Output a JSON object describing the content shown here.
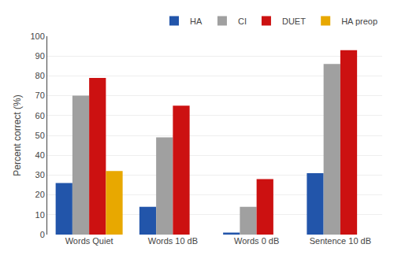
{
  "chart_data": {
    "type": "bar",
    "categories": [
      "Words Quiet",
      "Words 10 dB",
      "Words 0 dB",
      "Sentence 10 dB"
    ],
    "series": [
      {
        "name": "HA",
        "color": "#2255AA",
        "values": [
          26,
          14,
          1,
          31
        ]
      },
      {
        "name": "CI",
        "color": "#A0A0A0",
        "values": [
          70,
          49,
          14,
          86
        ]
      },
      {
        "name": "DUET",
        "color": "#CC1111",
        "values": [
          79,
          65,
          28,
          93
        ]
      },
      {
        "name": "HA preop",
        "color": "#E8A800",
        "values": [
          32,
          0,
          0,
          0
        ]
      }
    ],
    "ylabel": "Percent correct (%)",
    "ylim": [
      0,
      100
    ],
    "yticks": [
      0,
      10,
      20,
      30,
      40,
      50,
      60,
      70,
      80,
      90,
      100
    ],
    "grid": true,
    "legend": "upper right"
  }
}
